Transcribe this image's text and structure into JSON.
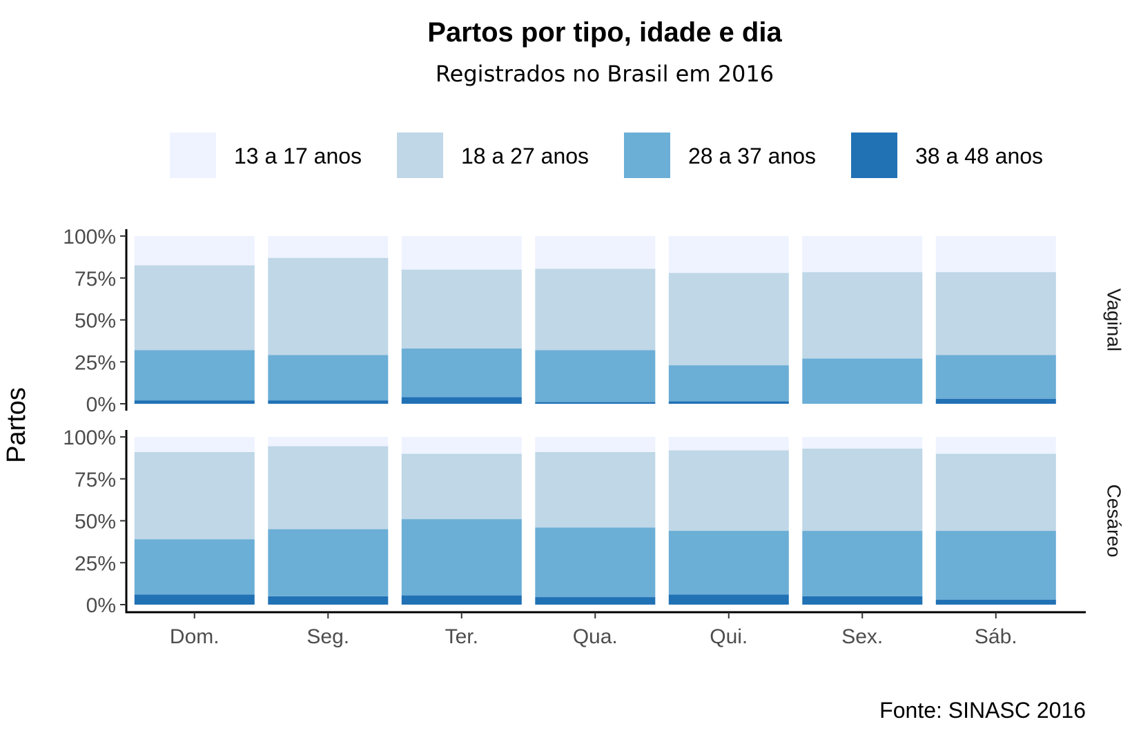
{
  "chart_data": {
    "type": "bar",
    "stacked": true,
    "title": "Partos por tipo, idade e dia",
    "subtitle": "Registrados no Brasil em 2016",
    "ylabel": "Partos",
    "caption": "Fonte: SINASC 2016",
    "ylim": [
      0,
      100
    ],
    "y_ticks": [
      "0%",
      "25%",
      "50%",
      "75%",
      "100%"
    ],
    "categories": [
      "Dom.",
      "Seg.",
      "Ter.",
      "Qua.",
      "Qui.",
      "Sex.",
      "Sáb."
    ],
    "legend": {
      "position": "top",
      "entries": [
        {
          "label": "13 a 17 anos",
          "color": "#eff3ff"
        },
        {
          "label": "18 a 27 anos",
          "color": "#bfd7e7"
        },
        {
          "label": "28 a 37 anos",
          "color": "#6baed6"
        },
        {
          "label": "38 a 48 anos",
          "color": "#2171b5"
        }
      ]
    },
    "facets": [
      {
        "label": "Vaginal",
        "series": [
          {
            "name": "38 a 48 anos",
            "values": [
              2,
              2,
              4,
              1,
              1.5,
              0,
              3
            ]
          },
          {
            "name": "28 a 37 anos",
            "values": [
              30,
              27,
              29,
              31,
              21.5,
              27,
              26
            ]
          },
          {
            "name": "18 a 27 anos",
            "values": [
              50.5,
              58,
              47,
              48.5,
              55,
              51.5,
              49.5
            ]
          },
          {
            "name": "13 a 17 anos",
            "values": [
              17.5,
              13,
              20,
              19.5,
              22,
              21.5,
              21.5
            ]
          }
        ]
      },
      {
        "label": "Cesáreo",
        "series": [
          {
            "name": "38 a 48 anos",
            "values": [
              6,
              5,
              5.5,
              4.5,
              6,
              5,
              3
            ]
          },
          {
            "name": "28 a 37 anos",
            "values": [
              33,
              40,
              45.5,
              41.5,
              38,
              39,
              41
            ]
          },
          {
            "name": "18 a 27 anos",
            "values": [
              52,
              49.5,
              39,
              45,
              48,
              49,
              46
            ]
          },
          {
            "name": "13 a 17 anos",
            "values": [
              9,
              5.5,
              10,
              9,
              8,
              7,
              10
            ]
          }
        ]
      }
    ]
  }
}
